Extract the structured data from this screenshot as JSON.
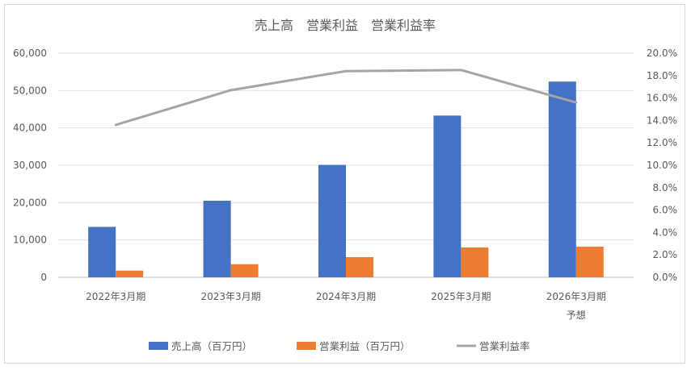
{
  "chart_data": {
    "type": "bar",
    "title": "売上高　営業利益　営業利益率",
    "categories": [
      [
        "2022年3月期"
      ],
      [
        "2023年3月期"
      ],
      [
        "2024年3月期"
      ],
      [
        "2025年3月期"
      ],
      [
        "2026年3月期",
        "予想"
      ]
    ],
    "series": [
      {
        "name": "売上高（百万円）",
        "type": "bar",
        "axis": "left",
        "color": "#4472c4",
        "values": [
          13500,
          20500,
          30100,
          43300,
          52400
        ]
      },
      {
        "name": "営業利益（百万円）",
        "type": "bar",
        "axis": "left",
        "color": "#ed7d31",
        "values": [
          1800,
          3500,
          5400,
          8000,
          8200
        ]
      },
      {
        "name": "営業利益率",
        "type": "line",
        "axis": "right",
        "color": "#a5a5a5",
        "values": [
          13.6,
          16.7,
          18.4,
          18.5,
          15.6
        ]
      }
    ],
    "y_left": {
      "min": 0,
      "max": 60000,
      "ticks": [
        "0",
        "10,000",
        "20,000",
        "30,000",
        "40,000",
        "50,000",
        "60,000"
      ]
    },
    "y_right": {
      "min": 0,
      "max": 20,
      "ticks": [
        "0.0%",
        "2.0%",
        "4.0%",
        "6.0%",
        "8.0%",
        "10.0%",
        "12.0%",
        "14.0%",
        "16.0%",
        "18.0%",
        "20.0%"
      ]
    },
    "grid": true,
    "legend": "bottom"
  }
}
